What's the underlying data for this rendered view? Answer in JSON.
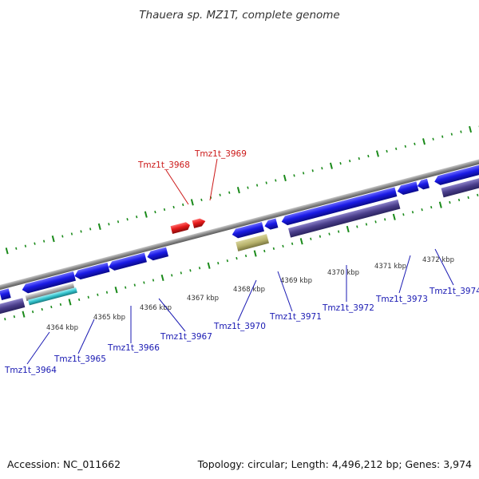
{
  "title": "Thauera sp. MZ1T, complete genome",
  "footer": {
    "accession": "Accession: NC_011662",
    "summary": "Topology: circular; Length: 4,496,212 bp; Genes: 3,974"
  },
  "colors": {
    "backbone": "#8a8a8a",
    "forward_gene": "#1a1ae6",
    "reverse_gene": "#1a1ae6",
    "highlight_gene": "#e61a1a",
    "rna_gene": "#b5b06a",
    "cds_track": "#4b3f8c",
    "teal_track": "#33c2cc",
    "tick": "#1a8a1a",
    "label_blue": "#1a1ab3",
    "label_red": "#cc1a1a"
  },
  "position_labels": [
    "4364 kbp",
    "4365 kbp",
    "4366 kbp",
    "4367 kbp",
    "4368 kbp",
    "4369 kbp",
    "4370 kbp",
    "4371 kbp",
    "4372 kbp"
  ],
  "gene_labels": {
    "top": [
      "Tmz1t_3968",
      "Tmz1t_3969"
    ],
    "bottom": [
      "Tmz1t_3964",
      "Tmz1t_3965",
      "Tmz1t_3966",
      "Tmz1t_3967",
      "Tmz1t_3970",
      "Tmz1t_3971",
      "Tmz1t_3972",
      "Tmz1t_3973",
      "Tmz1t_3974"
    ]
  }
}
